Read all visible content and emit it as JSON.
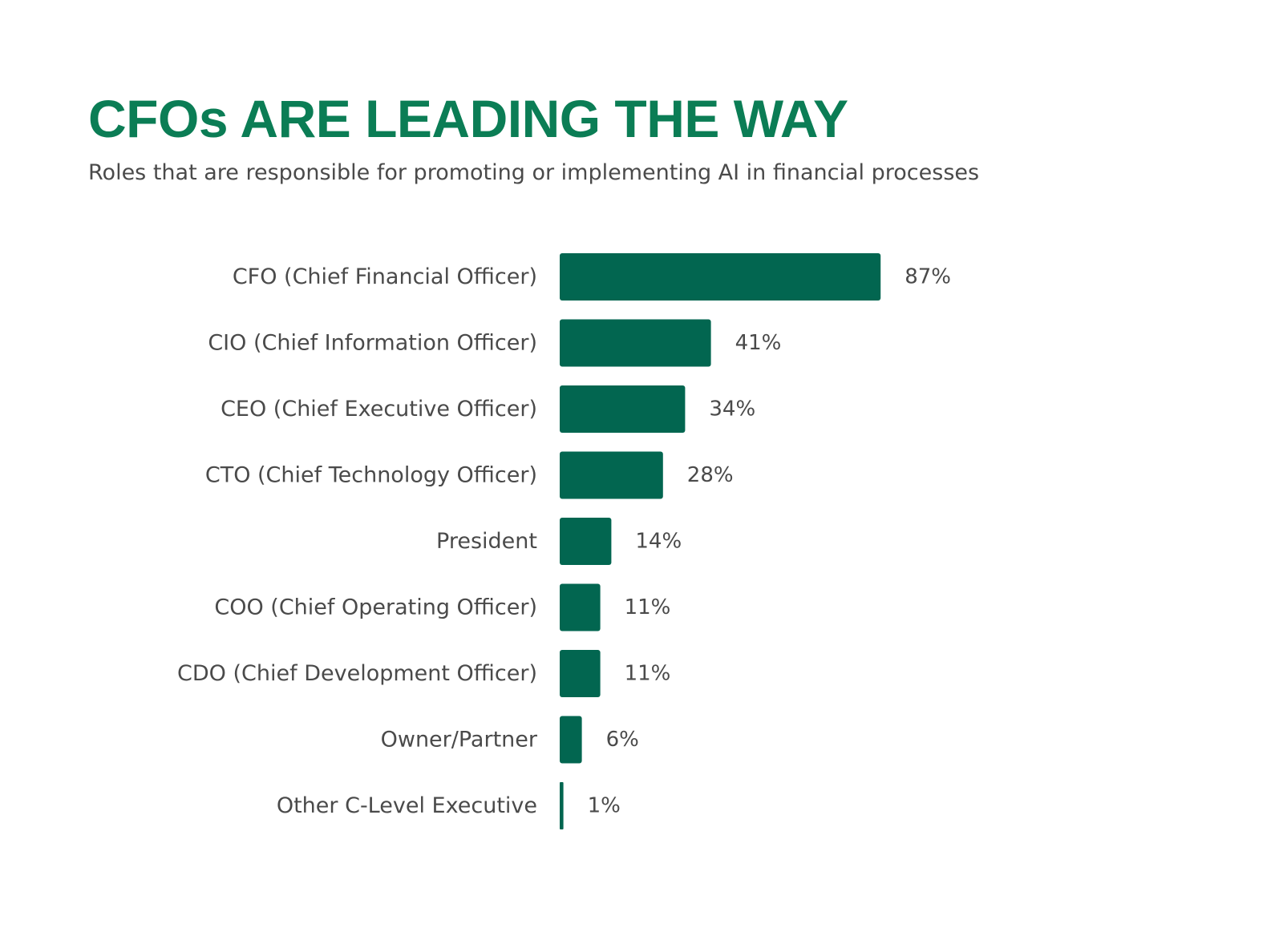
{
  "colors": {
    "title": "#0b7d55",
    "bar": "#026650",
    "text": "#4a4a4a",
    "background": "#ffffff"
  },
  "chart_data": {
    "type": "bar",
    "orientation": "horizontal",
    "title": "CFOs ARE LEADING THE WAY",
    "subtitle": "Roles that are responsible for promoting or implementing AI in financial processes",
    "categories": [
      "CFO (Chief Financial Officer)",
      "CIO (Chief Information Officer)",
      "CEO (Chief Executive Officer)",
      "CTO (Chief Technology Officer)",
      "President",
      "COO (Chief Operating Officer)",
      "CDO (Chief Development Officer)",
      "Owner/Partner",
      "Other C-Level Executive"
    ],
    "values": [
      87,
      41,
      34,
      28,
      14,
      11,
      11,
      6,
      1
    ],
    "value_labels": [
      "87%",
      "41%",
      "34%",
      "28%",
      "14%",
      "11%",
      "11%",
      "6%",
      "1%"
    ],
    "xlabel": "",
    "ylabel": "",
    "xlim": [
      0,
      100
    ],
    "grid": false,
    "legend": "none"
  }
}
